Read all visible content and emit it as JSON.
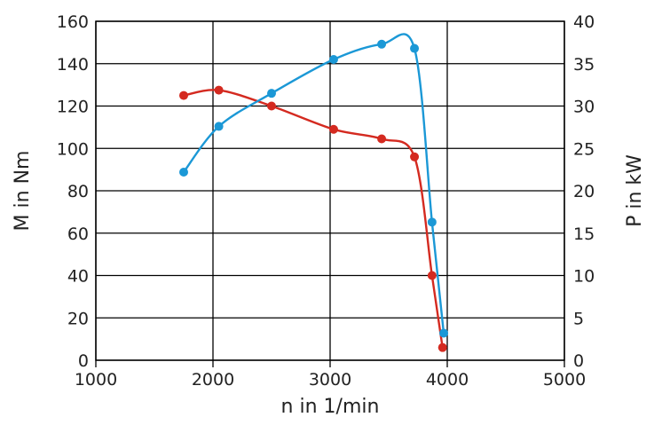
{
  "chart_data": {
    "type": "line",
    "title": "",
    "xlabel": "n in 1/min",
    "ylabel": "M in Nm",
    "y2label": "P in kW",
    "xlim": [
      1000,
      5000
    ],
    "ylim": [
      0,
      160
    ],
    "y2lim": [
      0,
      40
    ],
    "xticks": [
      "1000",
      "2000",
      "3000",
      "4000",
      "5000"
    ],
    "yticks": [
      "0",
      "20",
      "40",
      "60",
      "80",
      "100",
      "120",
      "140",
      "160"
    ],
    "y2ticks": [
      "0",
      "5",
      "10",
      "15",
      "20",
      "25",
      "30",
      "35",
      "40"
    ],
    "grid": true,
    "legend": "none",
    "series": [
      {
        "color": "#d42a20",
        "axis": "left",
        "x": [
          1750,
          2050,
          2500,
          3030,
          3440,
          3720,
          3870,
          3960
        ],
        "values": [
          125,
          127.5,
          120,
          109,
          104.5,
          96,
          40,
          6
        ]
      },
      {
        "color": "#1b98d6",
        "axis": "right",
        "x": [
          1750,
          2050,
          2500,
          3030,
          3440,
          3720,
          3870,
          3970
        ],
        "values": [
          22.2,
          27.6,
          31.5,
          35.5,
          37.3,
          36.8,
          16.3,
          3.2
        ]
      }
    ]
  }
}
